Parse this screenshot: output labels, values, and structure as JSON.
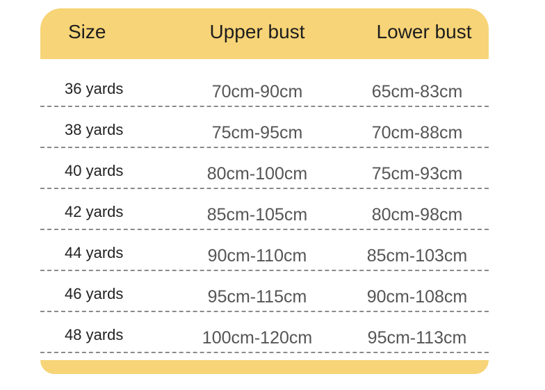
{
  "colors": {
    "accent": "#f7d477"
  },
  "table": {
    "headers": {
      "size": "Size",
      "upper": "Upper bust",
      "lower": "Lower bust"
    },
    "rows": [
      {
        "size": "36 yards",
        "upper": "70cm-90cm",
        "lower": "65cm-83cm"
      },
      {
        "size": "38 yards",
        "upper": "75cm-95cm",
        "lower": "70cm-88cm"
      },
      {
        "size": "40 yards",
        "upper": "80cm-100cm",
        "lower": "75cm-93cm"
      },
      {
        "size": "42 yards",
        "upper": "85cm-105cm",
        "lower": "80cm-98cm"
      },
      {
        "size": "44 yards",
        "upper": "90cm-110cm",
        "lower": "85cm-103cm"
      },
      {
        "size": "46 yards",
        "upper": "95cm-115cm",
        "lower": "90cm-108cm"
      },
      {
        "size": "48 yards",
        "upper": "100cm-120cm",
        "lower": "95cm-113cm"
      }
    ]
  }
}
